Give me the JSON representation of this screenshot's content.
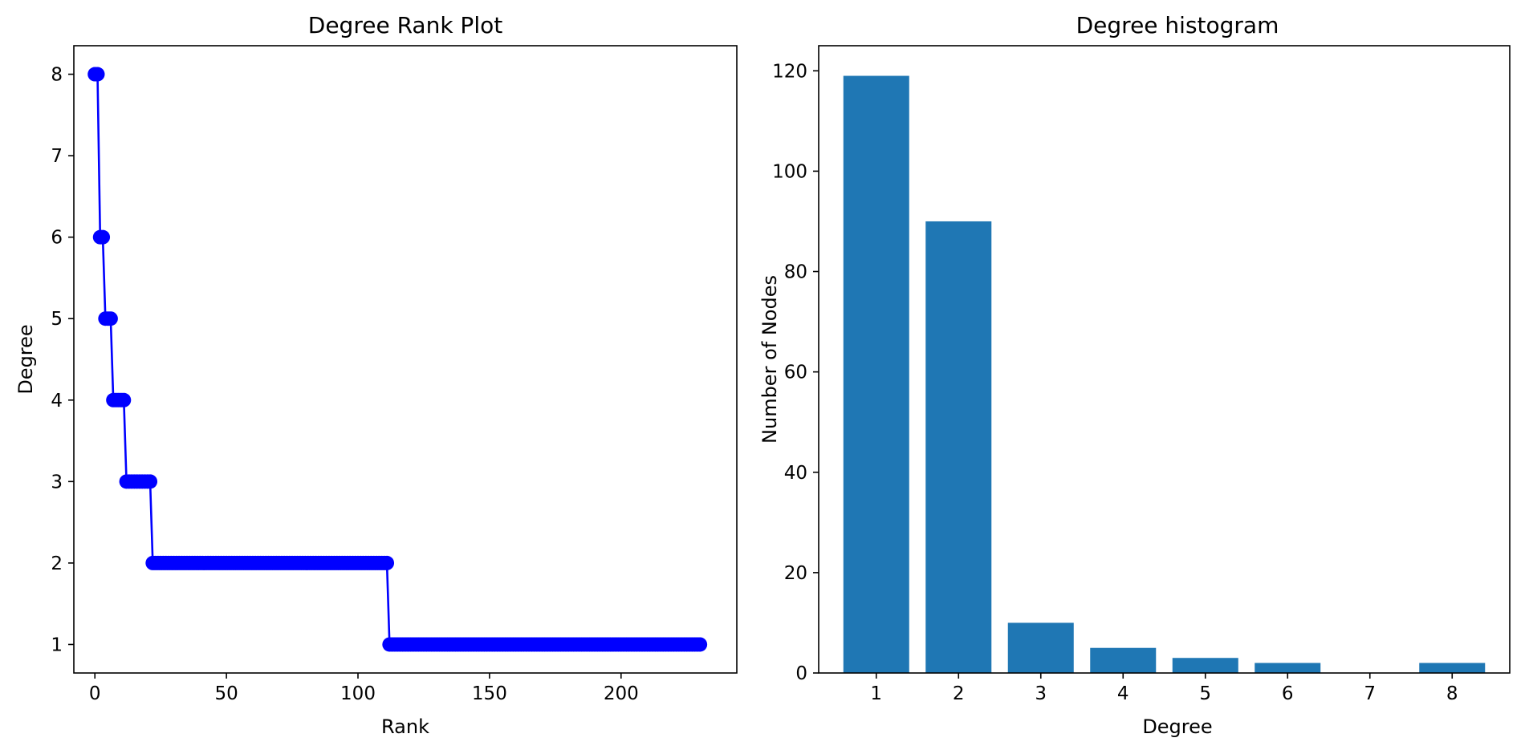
{
  "chart_data": [
    {
      "type": "line",
      "title": "Degree Rank Plot",
      "xlabel": "Rank",
      "ylabel": "Degree",
      "xlim": [
        -8,
        244
      ],
      "ylim": [
        0.65,
        8.35
      ],
      "xticks": [
        0,
        50,
        100,
        150,
        200
      ],
      "yticks": [
        1,
        2,
        3,
        4,
        5,
        6,
        7,
        8
      ],
      "grid": false,
      "line_color": "#0000ff",
      "marker": "circle",
      "segments": [
        {
          "degree": 8,
          "count": 2
        },
        {
          "degree": 6,
          "count": 2
        },
        {
          "degree": 5,
          "count": 3
        },
        {
          "degree": 4,
          "count": 5
        },
        {
          "degree": 3,
          "count": 10
        },
        {
          "degree": 2,
          "count": 90
        },
        {
          "degree": 1,
          "count": 119
        }
      ]
    },
    {
      "type": "bar",
      "title": "Degree histogram",
      "xlabel": "Degree",
      "ylabel": "Number of Nodes",
      "categories": [
        1,
        2,
        3,
        4,
        5,
        6,
        7,
        8
      ],
      "values": [
        119,
        90,
        10,
        5,
        3,
        2,
        0,
        2
      ],
      "xlim": [
        0.3,
        8.7
      ],
      "ylim": [
        0,
        125
      ],
      "yticks": [
        0,
        20,
        40,
        60,
        80,
        100,
        120
      ],
      "grid": false,
      "bar_color": "#1f77b4"
    }
  ]
}
